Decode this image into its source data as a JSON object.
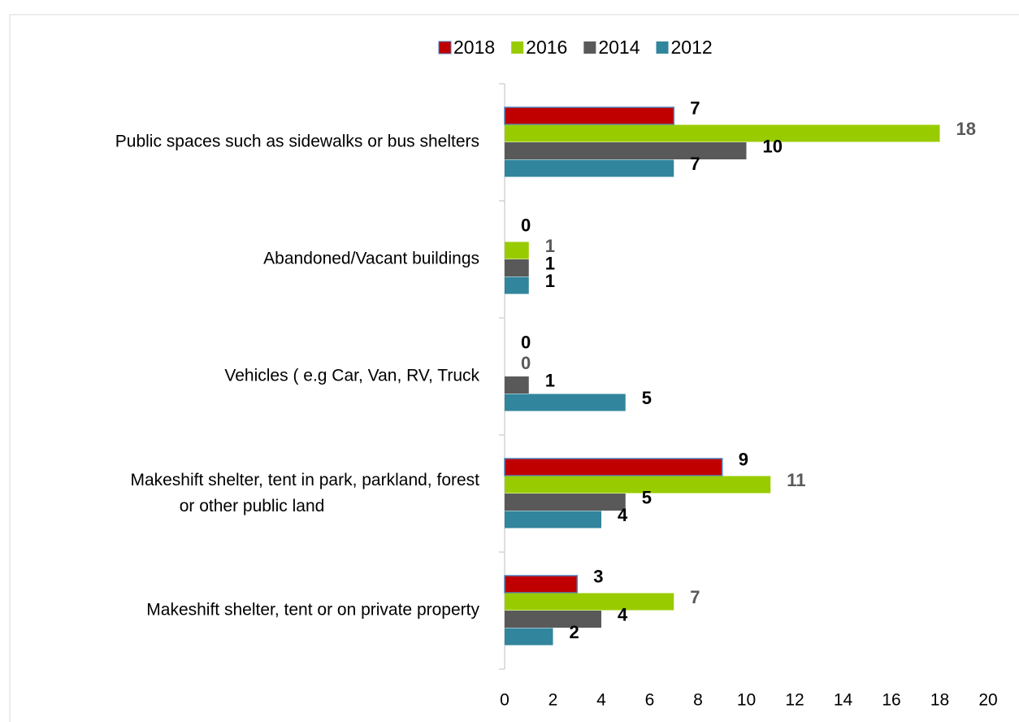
{
  "chart_data": {
    "type": "bar",
    "orientation": "horizontal",
    "categories": [
      "Public spaces such as sidewalks or bus shelters",
      "Abandoned/Vacant buildings",
      "Vehicles ( e.g Car, Van, RV, Truck",
      "Makeshift shelter, tent in park, parkland, forest\nor other public land",
      "Makeshift shelter, tent or on private property"
    ],
    "series": [
      {
        "name": "2018",
        "color": "#c00000",
        "values": [
          7,
          0,
          0,
          9,
          3
        ]
      },
      {
        "name": "2016",
        "color": "#99cc00",
        "values": [
          18,
          1,
          0,
          11,
          7
        ]
      },
      {
        "name": "2014",
        "color": "#595959",
        "values": [
          10,
          1,
          1,
          5,
          4
        ]
      },
      {
        "name": "2012",
        "color": "#31859c",
        "values": [
          7,
          1,
          5,
          4,
          2
        ]
      }
    ],
    "xlim": [
      0,
      20
    ],
    "xticks": [
      0,
      2,
      4,
      6,
      8,
      10,
      12,
      14,
      16,
      18,
      20
    ],
    "legend": "top",
    "grid": false
  }
}
